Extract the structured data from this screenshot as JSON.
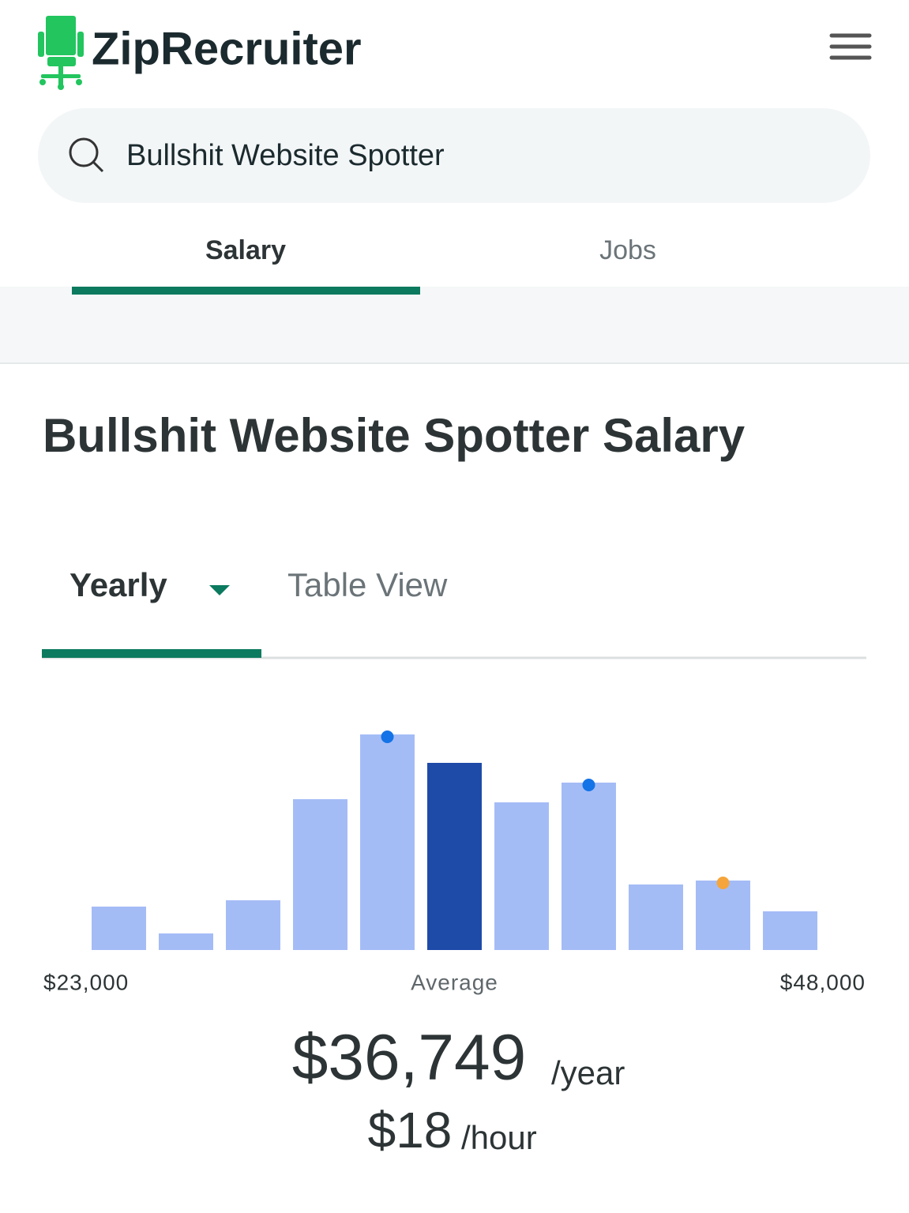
{
  "header": {
    "logo": "ZipRecruiter",
    "search": "Bullshit Website Spotter",
    "tabs": [
      "Salary",
      "Jobs"
    ]
  },
  "page": {
    "title": "Bullshit Website Spotter Salary",
    "view_tabs": [
      "Yearly",
      "Table View"
    ]
  },
  "chart_data": {
    "type": "bar",
    "values": [
      55,
      21,
      63,
      191,
      273,
      237,
      187,
      212,
      83,
      88,
      49
    ],
    "colors": [
      "#a4bcf6",
      "#a4bcf6",
      "#a4bcf6",
      "#a4bcf6",
      "#a4bcf6",
      "#1e4aa8",
      "#a4bcf6",
      "#a4bcf6",
      "#a4bcf6",
      "#a4bcf6",
      "#a4bcf6"
    ],
    "dot_colors": [
      null,
      null,
      null,
      null,
      "#1473e6",
      null,
      null,
      "#1473e6",
      null,
      "#f5a53b",
      null
    ],
    "ylim": [
      0,
      273
    ],
    "xlim": [
      23000,
      48000
    ],
    "xticks": [
      {
        "value": 23000,
        "label": "$23,000"
      },
      {
        "value": 48000,
        "label": "$48,000"
      }
    ],
    "x_annotation": "Average"
  },
  "summary": {
    "yearly": "$36,749",
    "yearly_unit": "/year",
    "hourly": "$18",
    "hourly_unit": "/hour"
  }
}
